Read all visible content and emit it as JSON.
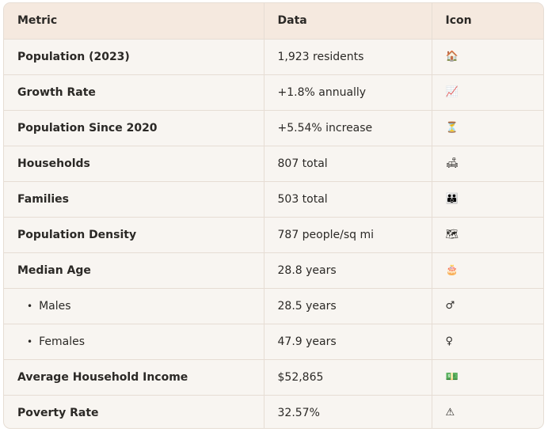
{
  "headers": [
    "Metric",
    "Data",
    "Icon"
  ],
  "rows": [
    {
      "metric": "Population (2023)",
      "data": "1,923 residents",
      "icon": "🏠",
      "icon_name": "house-icon"
    },
    {
      "metric": "Growth Rate",
      "data": "+1.8% annually",
      "icon": "📈",
      "icon_name": "chart-increasing-icon"
    },
    {
      "metric": "Population Since 2020",
      "data": "+5.54% increase",
      "icon": "⏳",
      "icon_name": "hourglass-icon"
    },
    {
      "metric": "Households",
      "data": "807 total",
      "icon": "🛋",
      "icon_name": "couch-icon"
    },
    {
      "metric": "Families",
      "data": "503 total",
      "icon": "👪",
      "icon_name": "family-icon"
    },
    {
      "metric": "Population Density",
      "data": "787 people/sq mi",
      "icon": "🗺",
      "icon_name": "map-icon"
    },
    {
      "metric": "Median Age",
      "data": "28.8 years",
      "icon": "🎂",
      "icon_name": "birthday-cake-icon"
    },
    {
      "metric": "Males",
      "data": "28.5 years",
      "icon": "♂",
      "icon_name": "male-sign-icon",
      "sub": true
    },
    {
      "metric": "Females",
      "data": "47.9 years",
      "icon": "♀",
      "icon_name": "female-sign-icon",
      "sub": true
    },
    {
      "metric": "Average Household Income",
      "data": "$52,865",
      "icon": "💵",
      "icon_name": "dollar-banknote-icon"
    },
    {
      "metric": "Poverty Rate",
      "data": "32.57%",
      "icon": "⚠",
      "icon_name": "warning-icon"
    }
  ]
}
